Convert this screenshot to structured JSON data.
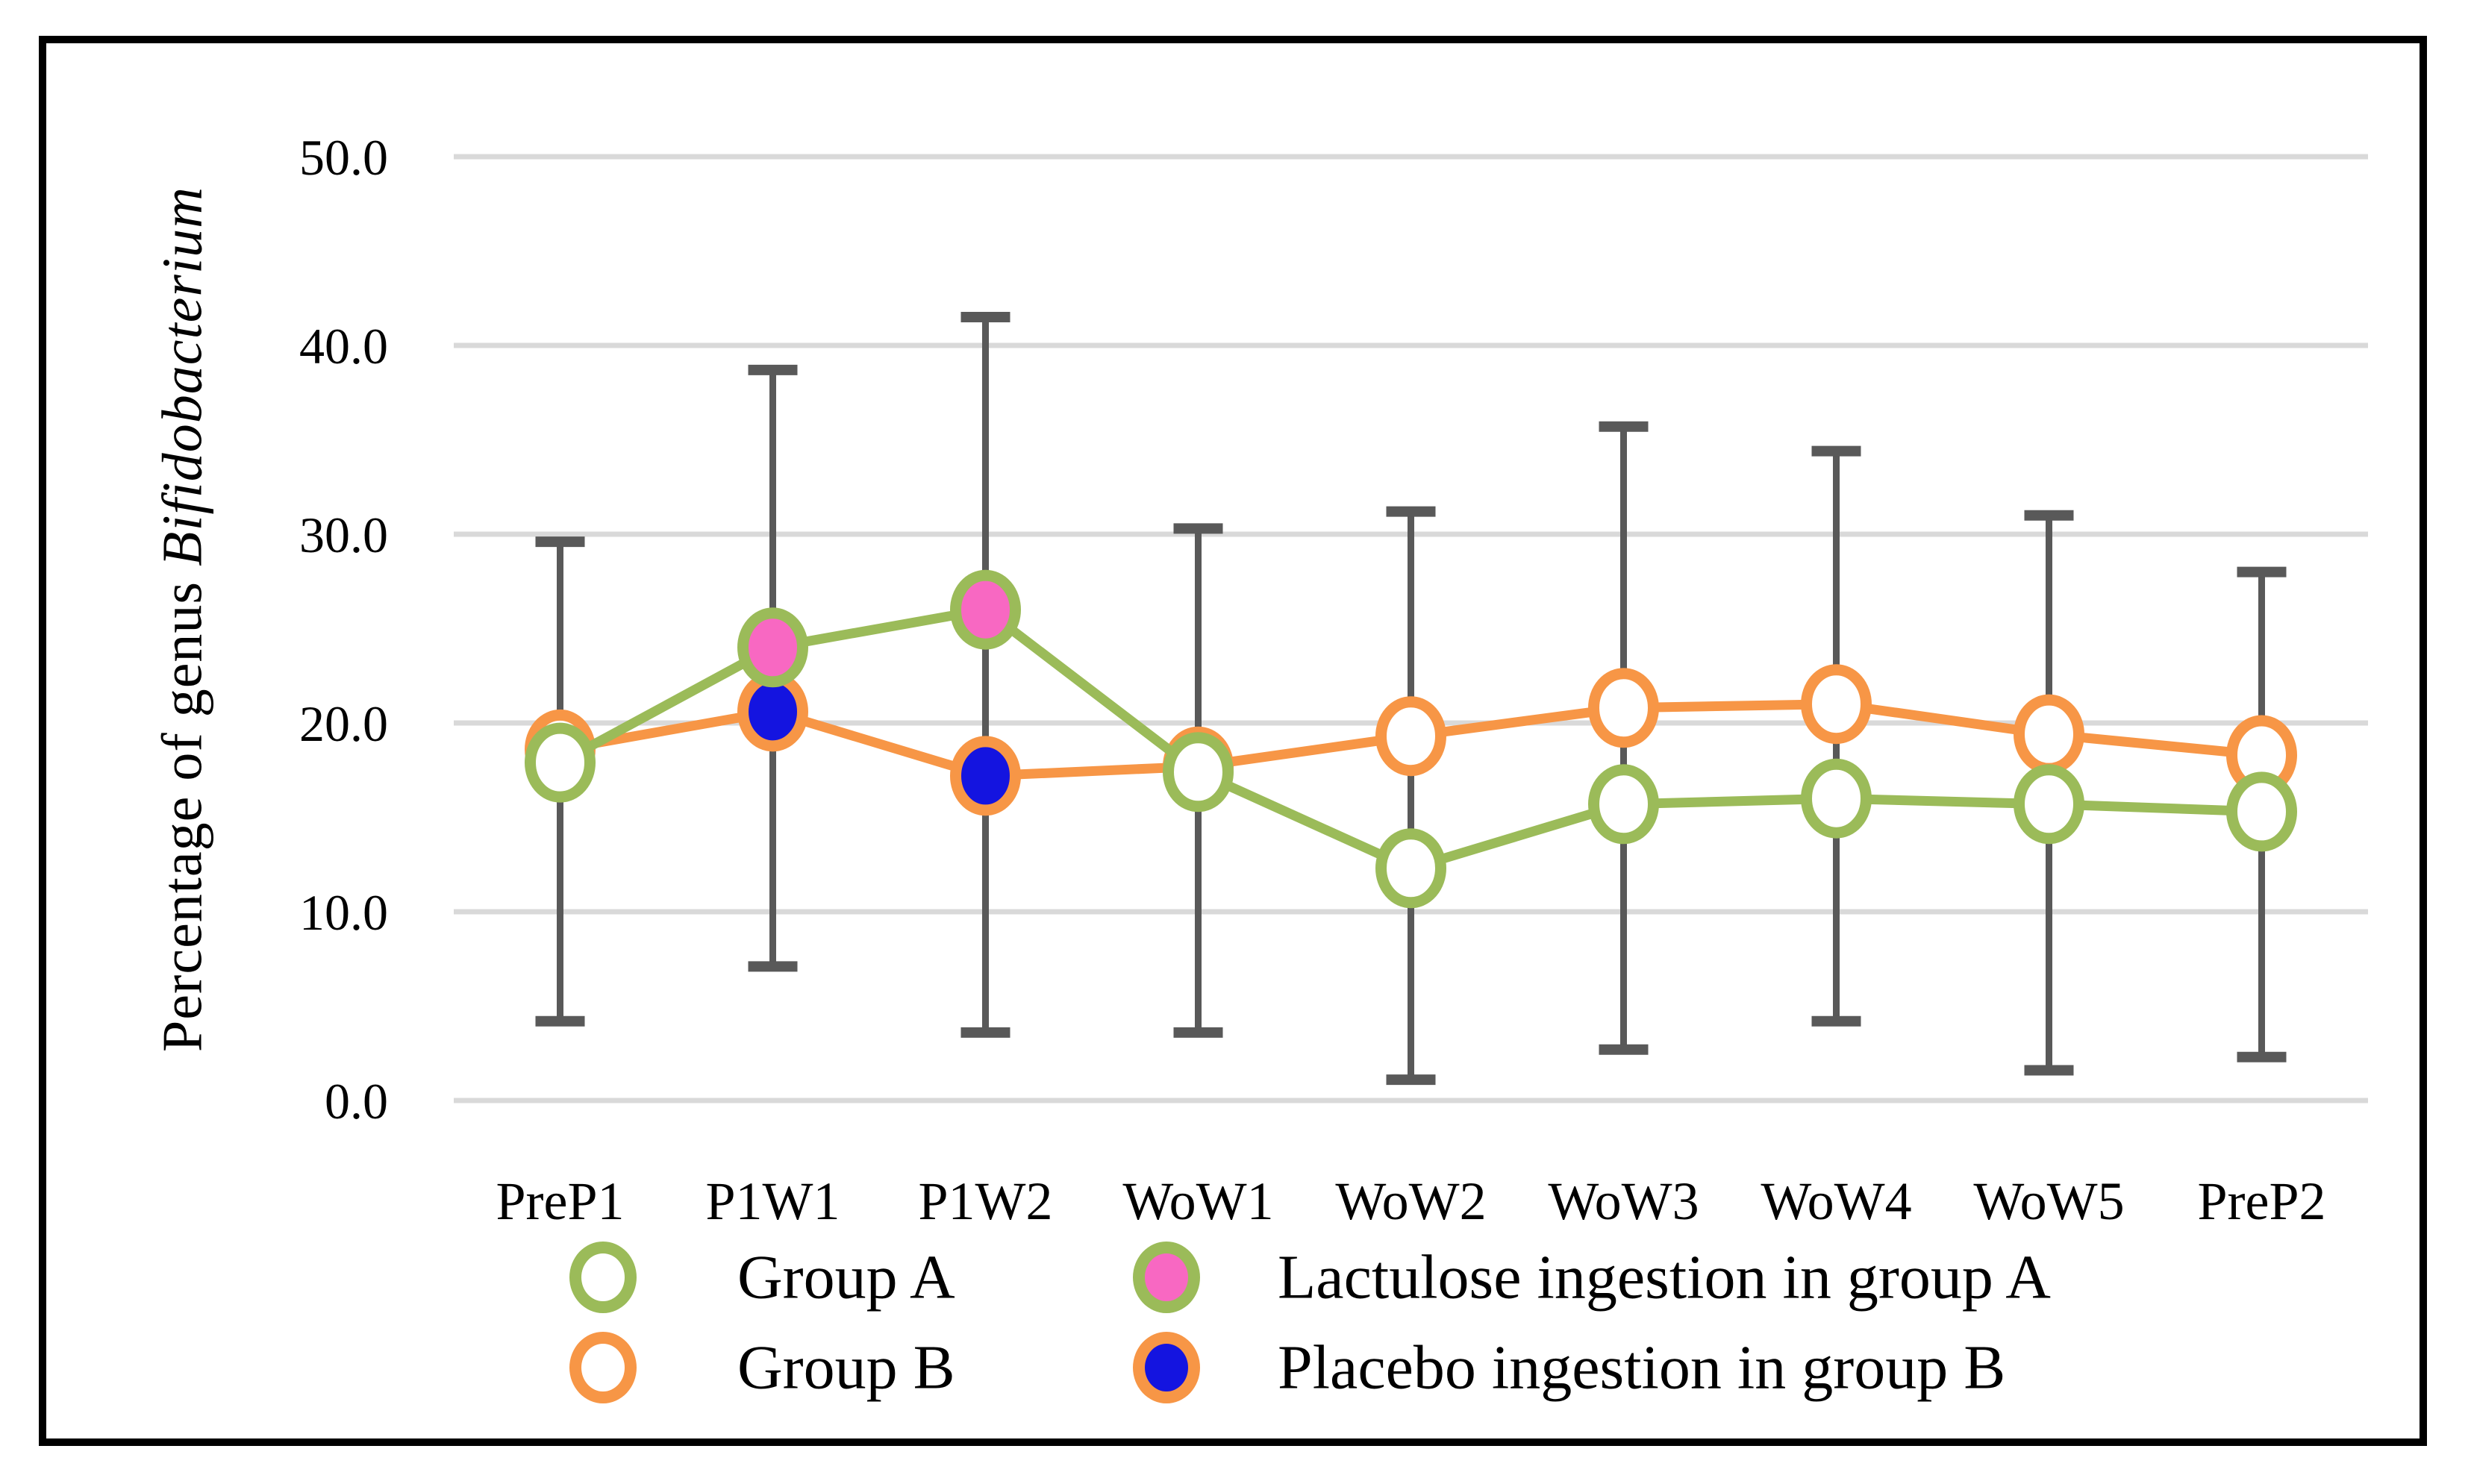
{
  "figure": {
    "y_axis": {
      "title_prefix": "Percentage of genus ",
      "title_italic": "Bifidobacterium",
      "tick_labels": [
        "0.0",
        "10.0",
        "20.0",
        "30.0",
        "40.0",
        "50.0"
      ],
      "min": 0,
      "max": 50,
      "step": 10
    },
    "legend": {
      "group_a_label": "Group A",
      "group_b_label": "Group B",
      "lactulose_label": "Lactulose ingestion in group A",
      "placebo_label": "Placebo ingestion in group B"
    }
  },
  "colors": {
    "group_a": "#9BBB59",
    "group_b": "#F79646",
    "lactulose_fill": "#F868C2",
    "placebo_fill": "#1414E0",
    "open_fill": "#FFFFFF",
    "error_bar": "#595959",
    "gridline": "#D9D9D9",
    "text": "#000000"
  },
  "chart_data": {
    "type": "line",
    "title": "",
    "xlabel": "",
    "ylabel": "Percentage of genus Bifidobacterium",
    "ylim": [
      0,
      50
    ],
    "grid": true,
    "legend_position": "bottom",
    "categories": [
      "PreP1",
      "P1W1",
      "P1W2",
      "WoW1",
      "WoW2",
      "WoW3",
      "WoW4",
      "WoW5",
      "PreP2"
    ],
    "series": [
      {
        "name": "Group B",
        "color": "#F79646",
        "marker": "open-circle",
        "values": [
          18.6,
          20.6,
          17.2,
          17.7,
          19.3,
          20.8,
          21.0,
          19.4,
          18.3
        ],
        "special_points": {
          "1": "placebo",
          "2": "placebo"
        }
      },
      {
        "name": "Group A",
        "color": "#9BBB59",
        "marker": "open-circle",
        "values": [
          17.9,
          24.0,
          26.0,
          17.4,
          12.3,
          15.7,
          16.0,
          15.7,
          15.3
        ],
        "special_points": {
          "1": "lactulose",
          "2": "lactulose"
        }
      }
    ],
    "special_point_meaning": {
      "lactulose": "Lactulose ingestion in group A",
      "placebo": "Placebo ingestion in group B"
    },
    "marker_styles": {
      "open": {
        "fill": "#FFFFFF"
      },
      "lactulose": {
        "fill": "#F868C2"
      },
      "placebo": {
        "fill": "#1414E0"
      }
    },
    "error_bars": {
      "color": "#595959",
      "upper": [
        29.6,
        38.7,
        41.5,
        30.3,
        31.2,
        35.7,
        34.4,
        31.0,
        28.0
      ],
      "lower": [
        4.2,
        7.1,
        3.6,
        3.6,
        1.1,
        2.7,
        4.2,
        1.6,
        2.3
      ]
    }
  }
}
